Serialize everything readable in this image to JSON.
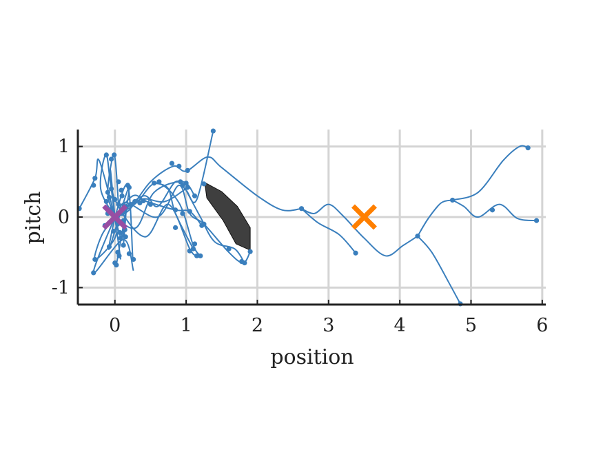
{
  "chart_data": {
    "type": "scatter",
    "title": "",
    "xlabel": "position",
    "ylabel": "pitch",
    "xlim": [
      -0.52,
      6.05
    ],
    "ylim": [
      -1.24,
      1.24
    ],
    "xticks": [
      "0",
      "1",
      "2",
      "3",
      "4",
      "5",
      "6"
    ],
    "yticks": [
      "-1",
      "0",
      "1"
    ],
    "grid": true,
    "colors": {
      "tree": "#3a7fbd",
      "obstacle": "#3f3f3f",
      "start": "#984ea3",
      "goal": "#ff7f00",
      "grid": "#d4d4d4",
      "axis": "#222222"
    },
    "obstacle": [
      [
        1.26,
        0.49
      ],
      [
        1.5,
        0.36
      ],
      [
        1.72,
        0.15
      ],
      [
        1.9,
        -0.15
      ],
      [
        1.9,
        -0.47
      ],
      [
        1.7,
        -0.38
      ],
      [
        1.52,
        -0.05
      ],
      [
        1.29,
        0.27
      ]
    ],
    "start": [
      0.0,
      0.0
    ],
    "goal": [
      3.5,
      0.0
    ],
    "trajectories": [
      [
        [
          0.0,
          0.0
        ],
        [
          0.2,
          0.1
        ],
        [
          0.5,
          0.5
        ],
        [
          0.82,
          0.72
        ],
        [
          1.0,
          0.65
        ],
        [
          1.3,
          0.85
        ],
        [
          1.5,
          0.7
        ],
        [
          2.0,
          0.3
        ],
        [
          2.35,
          0.1
        ],
        [
          2.62,
          0.12
        ]
      ],
      [
        [
          2.62,
          0.12
        ],
        [
          2.8,
          0.05
        ],
        [
          3.0,
          0.18
        ],
        [
          3.2,
          0.02
        ],
        [
          3.5,
          -0.3
        ],
        [
          3.8,
          -0.55
        ],
        [
          4.05,
          -0.4
        ],
        [
          4.25,
          -0.27
        ]
      ],
      [
        [
          4.25,
          -0.27
        ],
        [
          4.4,
          -0.02
        ],
        [
          4.58,
          0.2
        ],
        [
          4.74,
          0.24
        ]
      ],
      [
        [
          4.74,
          0.24
        ],
        [
          5.1,
          0.35
        ],
        [
          5.45,
          0.8
        ],
        [
          5.68,
          1.0
        ],
        [
          5.8,
          0.98
        ]
      ],
      [
        [
          4.74,
          0.24
        ],
        [
          4.9,
          0.15
        ],
        [
          5.1,
          0.0
        ],
        [
          5.4,
          0.18
        ],
        [
          5.65,
          -0.02
        ],
        [
          5.92,
          -0.05
        ]
      ],
      [
        [
          4.25,
          -0.27
        ],
        [
          4.45,
          -0.5
        ],
        [
          4.7,
          -0.95
        ],
        [
          4.85,
          -1.23
        ]
      ],
      [
        [
          2.62,
          0.12
        ],
        [
          2.85,
          -0.08
        ],
        [
          3.15,
          -0.25
        ],
        [
          3.38,
          -0.51
        ]
      ],
      [
        [
          0.0,
          0.0
        ],
        [
          0.4,
          0.3
        ],
        [
          0.6,
          0.15
        ],
        [
          0.85,
          0.5
        ],
        [
          1.0,
          0.38
        ],
        [
          1.15,
          0.25
        ],
        [
          1.38,
          1.22
        ]
      ],
      [
        [
          0.0,
          0.0
        ],
        [
          -0.18,
          -0.25
        ],
        [
          -0.28,
          -0.6
        ],
        [
          0.0,
          -0.3
        ],
        [
          0.12,
          0.2
        ],
        [
          0.6,
          0.0
        ],
        [
          0.9,
          0.45
        ],
        [
          1.05,
          0.05
        ],
        [
          1.25,
          -0.1
        ],
        [
          1.6,
          -0.5
        ],
        [
          1.8,
          -0.65
        ],
        [
          1.9,
          -0.49
        ]
      ],
      [
        [
          0.0,
          0.0
        ],
        [
          0.3,
          0.2
        ],
        [
          0.58,
          0.48
        ],
        [
          0.9,
          0.2
        ],
        [
          1.1,
          -0.4
        ],
        [
          1.2,
          -0.55
        ]
      ],
      [
        [
          0.0,
          0.0
        ],
        [
          -0.2,
          0.4
        ],
        [
          -0.12,
          0.88
        ],
        [
          0.0,
          0.25
        ],
        [
          0.42,
          -0.28
        ],
        [
          0.75,
          0.18
        ],
        [
          1.05,
          -0.45
        ],
        [
          1.15,
          -0.55
        ]
      ],
      [
        [
          0.0,
          0.0
        ],
        [
          -0.3,
          -0.79
        ],
        [
          0.12,
          -0.32
        ],
        [
          0.26,
          -0.76
        ]
      ],
      [
        [
          0.0,
          0.0
        ],
        [
          -0.22,
          0.8
        ],
        [
          -0.28,
          0.55
        ],
        [
          -0.5,
          0.12
        ]
      ],
      [
        [
          0.0,
          0.0
        ],
        [
          0.18,
          0.45
        ],
        [
          0.25,
          -0.58
        ]
      ],
      [
        [
          0.0,
          0.0
        ],
        [
          -0.06,
          0.65
        ],
        [
          -0.05,
          0.4
        ],
        [
          0.08,
          -0.6
        ]
      ],
      [
        [
          0.0,
          0.0
        ],
        [
          -0.08,
          -0.45
        ],
        [
          0.2,
          0.42
        ],
        [
          0.02,
          -0.68
        ]
      ],
      [
        [
          0.0,
          0.0
        ],
        [
          0.36,
          0.25
        ],
        [
          0.7,
          0.22
        ],
        [
          1.02,
          0.42
        ]
      ],
      [
        [
          0.0,
          0.0
        ],
        [
          0.25,
          0.3
        ],
        [
          0.45,
          0.22
        ],
        [
          0.85,
          0.1
        ],
        [
          1.05,
          0.08
        ],
        [
          1.22,
          -0.12
        ]
      ],
      [
        [
          0.0,
          0.0
        ],
        [
          0.3,
          -0.15
        ],
        [
          0.55,
          0.35
        ],
        [
          0.95,
          0.5
        ],
        [
          1.12,
          0.3
        ]
      ],
      [
        [
          0.0,
          0.0
        ],
        [
          -0.1,
          0.35
        ],
        [
          -0.01,
          0.88
        ],
        [
          0.05,
          0.18
        ]
      ],
      [
        [
          0.0,
          0.0
        ],
        [
          0.1,
          -0.3
        ],
        [
          0.16,
          0.15
        ],
        [
          0.12,
          -0.4
        ]
      ],
      [
        [
          1.0,
          0.38
        ],
        [
          1.2,
          0.0
        ],
        [
          1.4,
          -0.35
        ],
        [
          1.68,
          -0.45
        ],
        [
          1.82,
          -0.65
        ]
      ],
      [
        [
          0.58,
          0.48
        ],
        [
          0.75,
          0.4
        ],
        [
          0.85,
          0.05
        ],
        [
          1.1,
          -0.45
        ]
      ]
    ],
    "nodes": [
      [
        2.62,
        0.12
      ],
      [
        3.38,
        -0.51
      ],
      [
        4.25,
        -0.27
      ],
      [
        4.74,
        0.24
      ],
      [
        5.8,
        0.98
      ],
      [
        5.3,
        0.1
      ],
      [
        5.92,
        -0.05
      ],
      [
        4.85,
        -1.23
      ],
      [
        1.38,
        1.22
      ],
      [
        1.02,
        0.66
      ],
      [
        0.9,
        0.72
      ],
      [
        0.8,
        0.76
      ],
      [
        0.92,
        0.5
      ],
      [
        0.62,
        0.5
      ],
      [
        0.55,
        0.48
      ],
      [
        1.02,
        0.42
      ],
      [
        1.0,
        0.48
      ],
      [
        0.95,
        0.45
      ],
      [
        1.12,
        0.3
      ],
      [
        1.25,
        0.47
      ],
      [
        0.4,
        0.23
      ],
      [
        0.35,
        0.2
      ],
      [
        0.28,
        0.22
      ],
      [
        0.22,
        0.18
      ],
      [
        0.18,
        0.45
      ],
      [
        0.2,
        0.42
      ],
      [
        0.05,
        0.5
      ],
      [
        0.5,
        0.18
      ],
      [
        0.85,
        0.1
      ],
      [
        0.95,
        0.05
      ],
      [
        0.85,
        -0.15
      ],
      [
        1.05,
        0.08
      ],
      [
        1.22,
        -0.12
      ],
      [
        1.25,
        -0.1
      ],
      [
        1.12,
        -0.38
      ],
      [
        1.1,
        -0.45
      ],
      [
        1.2,
        -0.55
      ],
      [
        1.15,
        -0.55
      ],
      [
        1.05,
        -0.48
      ],
      [
        1.6,
        -0.45
      ],
      [
        1.82,
        -0.65
      ],
      [
        1.78,
        -0.63
      ],
      [
        1.9,
        -0.49
      ],
      [
        -0.12,
        0.88
      ],
      [
        -0.01,
        0.88
      ],
      [
        -0.05,
        0.82
      ],
      [
        -0.28,
        0.55
      ],
      [
        -0.3,
        0.45
      ],
      [
        -0.5,
        0.12
      ],
      [
        -0.28,
        -0.6
      ],
      [
        -0.3,
        -0.79
      ],
      [
        0.02,
        -0.68
      ],
      [
        0.0,
        -0.65
      ],
      [
        0.06,
        -0.55
      ],
      [
        0.04,
        -0.5
      ],
      [
        0.2,
        -0.52
      ],
      [
        0.26,
        -0.6
      ],
      [
        -0.08,
        -0.42
      ],
      [
        0.15,
        -0.28
      ],
      [
        0.14,
        -0.18
      ],
      [
        0.12,
        -0.4
      ],
      [
        0.08,
        -0.3
      ],
      [
        0.16,
        0.15
      ],
      [
        0.1,
        0.3
      ],
      [
        -0.1,
        0.35
      ],
      [
        -0.05,
        0.4
      ],
      [
        -0.1,
        0.05
      ],
      [
        0.0,
        0.25
      ],
      [
        0.05,
        0.18
      ],
      [
        -0.04,
        0.12
      ],
      [
        0.04,
        -0.1
      ],
      [
        0.12,
        -0.05
      ],
      [
        0.14,
        0.08
      ],
      [
        -0.12,
        0.22
      ],
      [
        -0.08,
        0.28
      ],
      [
        0.09,
        0.38
      ],
      [
        0.1,
        0.05
      ],
      [
        -0.02,
        -0.2
      ],
      [
        0.07,
        -0.22
      ],
      [
        -0.14,
        -0.12
      ]
    ]
  }
}
